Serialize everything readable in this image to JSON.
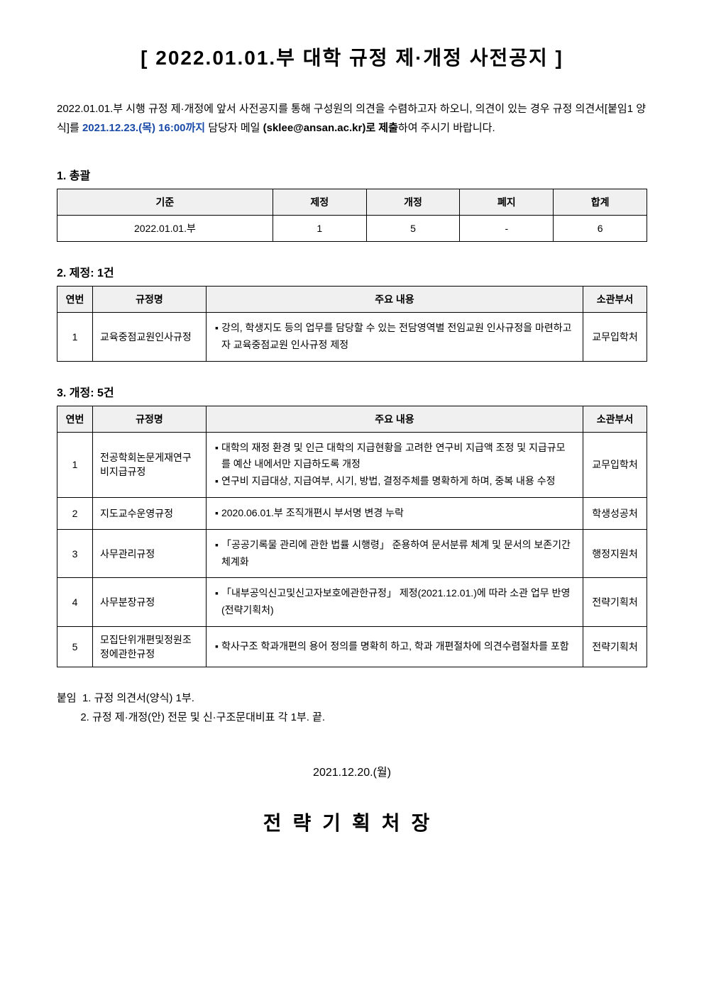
{
  "title": "[ 2022.01.01.부 대학 규정 제·개정 사전공지 ]",
  "intro": {
    "line1_before": "2022.01.01.부 시행 규정 제·개정에 앞서 사전공지를 통해 구성원의 의견을 수렴하고자 하오니, 의견이 있는 경우 규정 의견서[붙임1 양식]를 ",
    "deadline": "2021.12.23.(목) 16:00까지",
    "line1_after_deadline": " 담당자 메일 ",
    "email_bold": "(sklee@ansan.ac.kr)로 제출",
    "line1_end": "하여 주시기 바랍니다."
  },
  "section1": {
    "heading": "1. 총괄",
    "headers": [
      "기준",
      "제정",
      "개정",
      "폐지",
      "합계"
    ],
    "row": [
      "2022.01.01.부",
      "1",
      "5",
      "-",
      "6"
    ]
  },
  "section2": {
    "heading": "2. 제정: 1건",
    "headers": [
      "연번",
      "규정명",
      "주요 내용",
      "소관부서"
    ],
    "rows": [
      {
        "no": "1",
        "name": "교육중점교원인사규정",
        "content": "강의, 학생지도 등의 업무를 담당할 수 있는 전담영역별 전임교원 인사규정을 마련하고자 교육중점교원 인사규정 제정",
        "dept": "교무입학처"
      }
    ]
  },
  "section3": {
    "heading": "3. 개정: 5건",
    "headers": [
      "연번",
      "규정명",
      "주요 내용",
      "소관부서"
    ],
    "rows": [
      {
        "no": "1",
        "name": "전공학회논문게재연구비지급규정",
        "content1": "대학의 재정 환경 및 인근 대학의 지급현황을 고려한 연구비 지급액 조정 및 지급규모를 예산 내에서만 지급하도록 개정",
        "content2": "연구비 지급대상, 지급여부, 시기, 방법, 결정주체를 명확하게 하며, 중복 내용 수정",
        "dept": "교무입학처"
      },
      {
        "no": "2",
        "name": "지도교수운영규정",
        "content1": "2020.06.01.부 조직개편시 부서명 변경 누락",
        "dept": "학생성공처"
      },
      {
        "no": "3",
        "name": "사무관리규정",
        "content1": "「공공기록물 관리에 관한 법률 시행령」 준용하여 문서분류 체계 및 문서의 보존기간 체계화",
        "dept": "행정지원처"
      },
      {
        "no": "4",
        "name": "사무분장규정",
        "content1": "「내부공익신고및신고자보호에관한규정」 제정(2021.12.01.)에 따라 소관 업무 반영(전략기획처)",
        "dept": "전략기획처"
      },
      {
        "no": "5",
        "name": "모집단위개편및정원조정에관한규정",
        "content1": "학사구조 학과개편의 용어 정의를 명확히 하고, 학과 개편절차에 의견수렴절차를 포함",
        "dept": "전략기획처"
      }
    ]
  },
  "attachments": {
    "prefix": "붙임",
    "item1": "1. 규정 의견서(양식) 1부.",
    "item2": "2. 규정 제·개정(안) 전문 및 신·구조문대비표 각 1부.   끝."
  },
  "date": "2021.12.20.(월)",
  "signature": "전략기획처장"
}
